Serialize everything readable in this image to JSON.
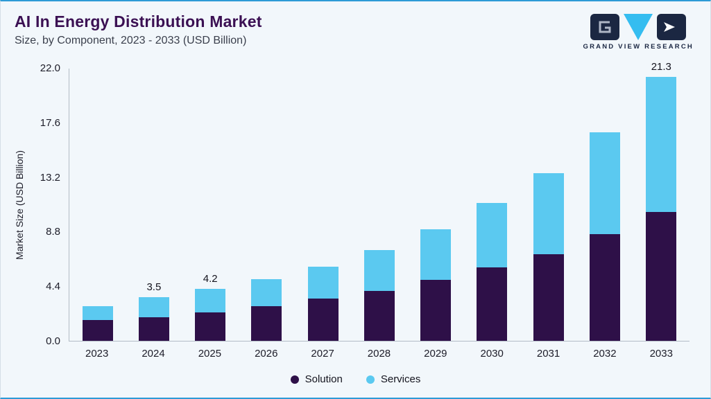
{
  "page": {
    "background": "#f2f7fb",
    "accent_border_color": "#2d9bd6"
  },
  "header": {
    "title": "AI In Energy Distribution Market",
    "subtitle": "Size, by Component, 2023 - 2033 (USD Billion)"
  },
  "logo": {
    "brand": "GRAND VIEW RESEARCH",
    "navy": "#1b2742",
    "cyan": "#35bdf0"
  },
  "chart_data": {
    "type": "bar",
    "stacked": true,
    "title": "AI In Energy Distribution Market",
    "subtitle": "Size, by Component, 2023 - 2033 (USD Billion)",
    "xlabel": "",
    "ylabel": "Market Size (USD Billion)",
    "ylim": [
      0,
      22
    ],
    "yticks": [
      0,
      4.4,
      8.8,
      13.2,
      17.6,
      22
    ],
    "ytick_labels": [
      "0.0",
      "4.4",
      "8.8",
      "13.2",
      "17.6",
      "22.0"
    ],
    "grid": false,
    "legend_position": "bottom",
    "categories": [
      "2023",
      "2024",
      "2025",
      "2026",
      "2027",
      "2028",
      "2029",
      "2030",
      "2031",
      "2032",
      "2033"
    ],
    "series": [
      {
        "name": "Solution",
        "color": "#2e1048",
        "values": [
          1.7,
          1.9,
          2.3,
          2.8,
          3.4,
          4.0,
          4.9,
          5.9,
          7.0,
          8.6,
          10.4
        ]
      },
      {
        "name": "Services",
        "color": "#5bc9f0",
        "values": [
          1.1,
          1.6,
          1.9,
          2.2,
          2.6,
          3.3,
          4.1,
          5.2,
          6.5,
          8.2,
          10.9
        ]
      }
    ],
    "totals": [
      2.8,
      3.5,
      4.2,
      5.0,
      6.0,
      7.3,
      9.0,
      11.1,
      13.5,
      16.8,
      21.3
    ],
    "total_labels": [
      "",
      "3.5",
      "4.2",
      "",
      "",
      "",
      "",
      "",
      "",
      "",
      "21.3"
    ]
  }
}
